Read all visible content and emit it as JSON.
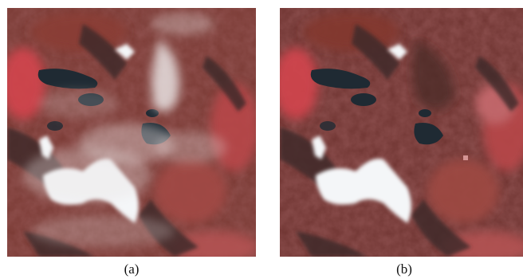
{
  "panels": [
    {
      "label": "(a)",
      "description_kind": "satellite-image-cloudy"
    },
    {
      "label": "(b)",
      "description_kind": "satellite-image-cloud-removed"
    }
  ],
  "colors": {
    "terrain_base": "#7a3a34",
    "terrain_red": "#c2474c",
    "terrain_dark": "#3f2a2a",
    "lake": "#1f2a33",
    "snow": "#f4f6f8",
    "cloud": "#e8e2e2"
  }
}
